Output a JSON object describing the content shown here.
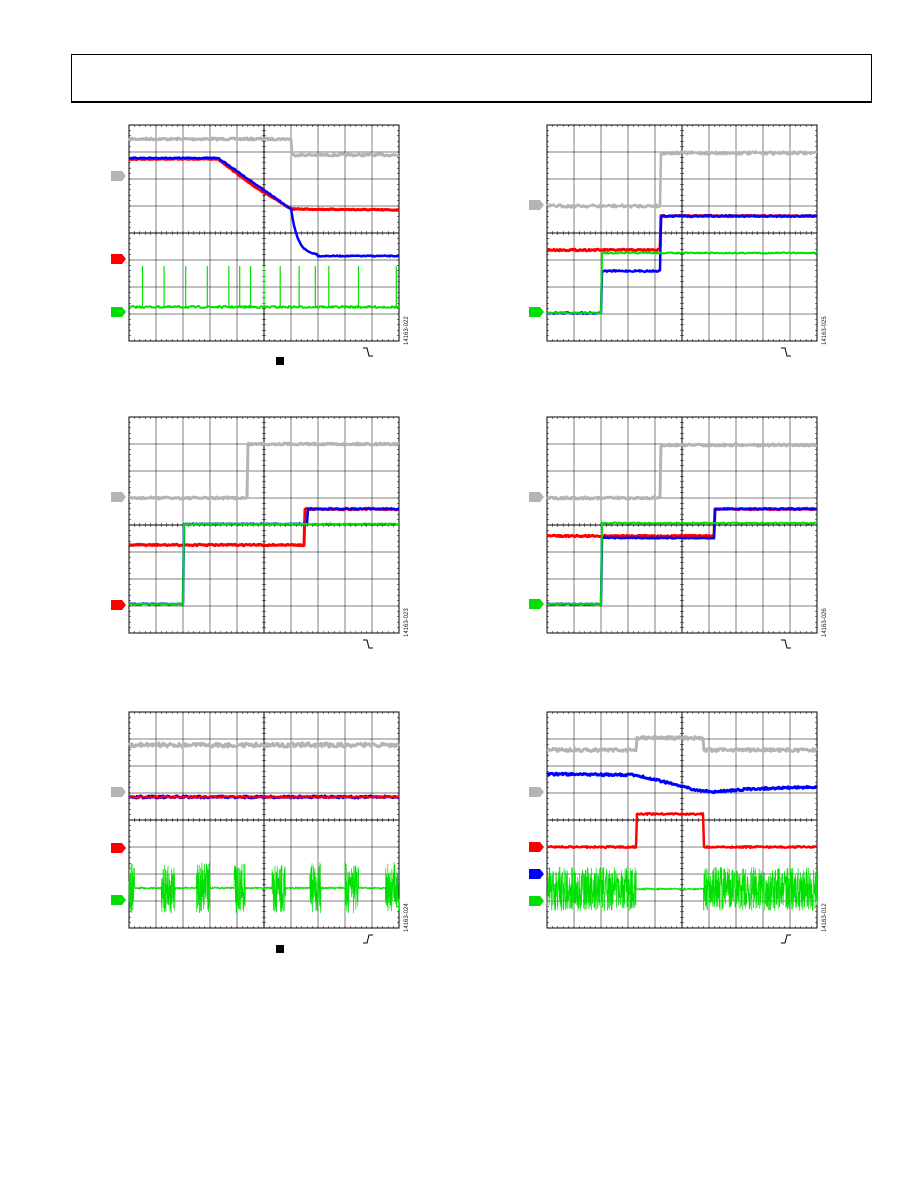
{
  "colors": {
    "ch1": "#b4b4b4",
    "ch2": "#ff0000",
    "ch3": "#0000ff",
    "ch4": "#00e000",
    "grid": "#000000"
  },
  "figure_ids": {
    "fig1": "14163-022",
    "fig2": "14163-025",
    "fig3": "14163-023",
    "fig4": "14163-026",
    "fig5": "14163-024",
    "fig6": "14163-012"
  },
  "trigger": {
    "fig1": "falling-edge",
    "fig2": "falling-edge",
    "fig3": "falling-edge",
    "fig4": "falling-edge",
    "fig5": "rising-edge",
    "fig6": "rising-edge"
  }
}
